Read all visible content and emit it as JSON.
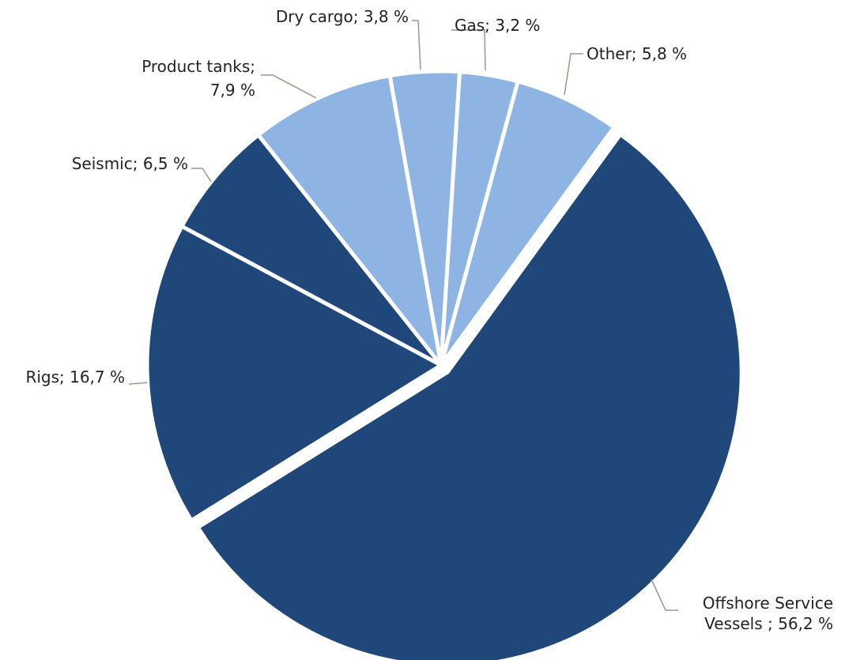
{
  "chart_data": {
    "type": "pie",
    "title": "",
    "slices": [
      {
        "name": "Offshore Service Vessels",
        "value": 56.2,
        "label_lines": [
          "Offshore Service",
          "Vessels ; 56,2 %"
        ]
      },
      {
        "name": "Rigs",
        "value": 16.7,
        "label_lines": [
          "Rigs; 16,7 %"
        ]
      },
      {
        "name": "Seismic",
        "value": 6.5,
        "label_lines": [
          "Seismic; 6,5 %"
        ]
      },
      {
        "name": "Product tanks",
        "value": 7.9,
        "label_lines": [
          "Product tanks;",
          "7,9 %"
        ]
      },
      {
        "name": "Dry cargo",
        "value": 3.8,
        "label_lines": [
          "Dry cargo; 3,8 %"
        ]
      },
      {
        "name": "Gas",
        "value": 3.2,
        "label_lines": [
          "Gas; 3,2 %"
        ]
      },
      {
        "name": "Other",
        "value": 5.8,
        "label_lines": [
          "Other; 5,8 %"
        ]
      }
    ],
    "legend": "none",
    "data_labels": "outside-with-leader-lines"
  },
  "colors": {
    "dark_blue": "#20477a",
    "light_blue": "#8db4e2",
    "leader_line": "#a09484",
    "separator": "#ffffff",
    "label_text": "#222222"
  }
}
